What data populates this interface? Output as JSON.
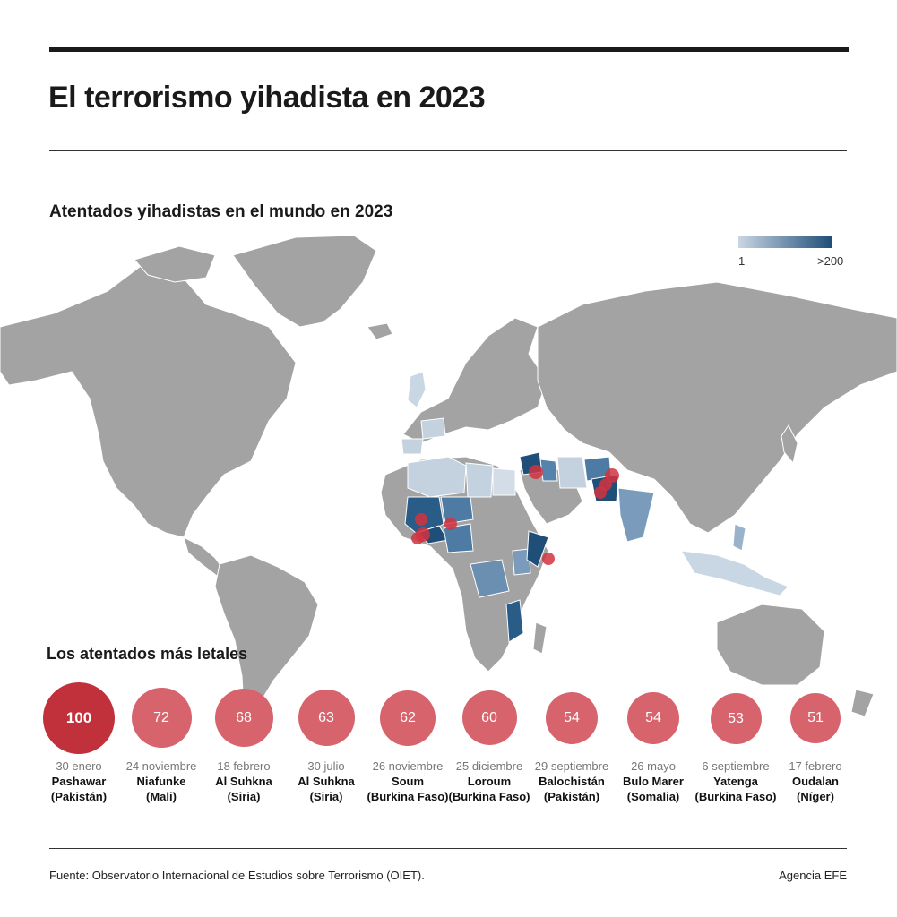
{
  "title": "El terrorismo yihadista en 2023",
  "map": {
    "title": "Atentados yihadistas en el mundo en 2023",
    "legend": {
      "min_label": "1",
      "max_label": ">200",
      "color_low": "#c9d6e3",
      "color_high": "#1f4e79"
    },
    "colors": {
      "land": "#a3a3a3",
      "border": "#ffffff",
      "dot": "#d2323f"
    },
    "shaded_countries": [
      {
        "name": "Mali",
        "level": "high"
      },
      {
        "name": "Burkina Faso",
        "level": "high"
      },
      {
        "name": "Níger",
        "level": "high"
      },
      {
        "name": "Nigeria",
        "level": "medium"
      },
      {
        "name": "Siria",
        "level": "high"
      },
      {
        "name": "Irak",
        "level": "medium"
      },
      {
        "name": "Pakistán",
        "level": "high"
      },
      {
        "name": "Afganistán",
        "level": "medium"
      },
      {
        "name": "India",
        "level": "medium"
      },
      {
        "name": "Somalia",
        "level": "high"
      },
      {
        "name": "Mozambique",
        "level": "high"
      },
      {
        "name": "RD Congo",
        "level": "medium"
      },
      {
        "name": "Kenia",
        "level": "medium"
      },
      {
        "name": "Filipinas",
        "level": "low"
      },
      {
        "name": "Argelia",
        "level": "low"
      },
      {
        "name": "Libia",
        "level": "low"
      },
      {
        "name": "Egipto",
        "level": "low"
      },
      {
        "name": "Irán",
        "level": "low"
      },
      {
        "name": "Francia",
        "level": "low"
      },
      {
        "name": "Reino Unido",
        "level": "low"
      },
      {
        "name": "España",
        "level": "low"
      },
      {
        "name": "Indonesia",
        "level": "low"
      }
    ]
  },
  "lethal": {
    "title": "Los atentados más letales",
    "items": [
      {
        "value": "100",
        "date": "30 enero",
        "place": "Pashawar",
        "country": "(Pakistán)"
      },
      {
        "value": "72",
        "date": "24 noviembre",
        "place": "Niafunke",
        "country": "(Mali)"
      },
      {
        "value": "68",
        "date": "18 febrero",
        "place": "Al Suhkna",
        "country": "(Siria)"
      },
      {
        "value": "63",
        "date": "30 julio",
        "place": "Al Suhkna",
        "country": "(Siria)"
      },
      {
        "value": "62",
        "date": "26 noviembre",
        "place": "Soum",
        "country": "(Burkina Faso)"
      },
      {
        "value": "60",
        "date": "25 diciembre",
        "place": "Loroum",
        "country": "(Burkina Faso)"
      },
      {
        "value": "54",
        "date": "29 septiembre",
        "place": "Balochistán",
        "country": "(Pakistán)"
      },
      {
        "value": "54",
        "date": "26 mayo",
        "place": "Bulo Marer",
        "country": "(Somalia)"
      },
      {
        "value": "53",
        "date": "6 septiembre",
        "place": "Yatenga",
        "country": "(Burkina Faso)"
      },
      {
        "value": "51",
        "date": "17 febrero",
        "place": "Oudalan",
        "country": "(Níger)"
      }
    ]
  },
  "footer": {
    "source": "Fuente: Observatorio Internacional de Estudios sobre Terrorismo (OIET).",
    "credit": "Agencia EFE"
  }
}
